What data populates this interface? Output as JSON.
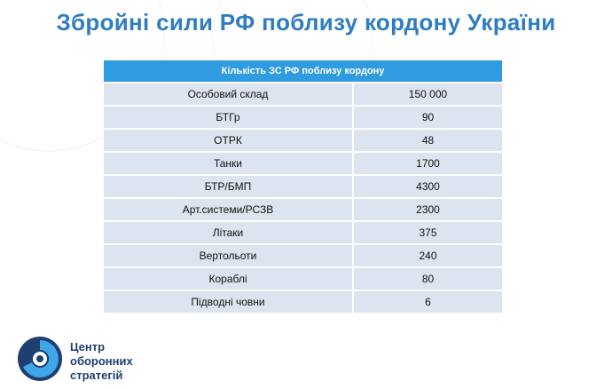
{
  "header": {
    "title": "Збройні сили РФ поблизу кордону України"
  },
  "table": {
    "caption": "Кількість ЗС РФ поблизу кордону",
    "rows": [
      [
        "Особовий склад",
        "150 000"
      ],
      [
        "БТГр",
        "90"
      ],
      [
        "ОТРК",
        "48"
      ],
      [
        "Танки",
        "1700"
      ],
      [
        "БТР/БМП",
        "4300"
      ],
      [
        "Арт.системи/РСЗВ",
        "2300"
      ],
      [
        "Літаки",
        "375"
      ],
      [
        "Вертольоти",
        "240"
      ],
      [
        "Кораблі",
        "80"
      ],
      [
        "Підводні човни",
        "6"
      ]
    ]
  },
  "logo": {
    "lines": [
      "Центр",
      "оборонних",
      "стратегій"
    ]
  }
}
